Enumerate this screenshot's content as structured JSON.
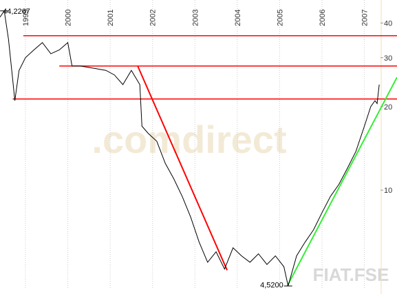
{
  "chart_data": {
    "type": "line",
    "symbol": "FIAT.FSE",
    "watermark": ".comdirect",
    "log_scale": true,
    "xlim": [
      1998.4,
      2007.38
    ],
    "xticks": [
      1999,
      2000,
      2001,
      2002,
      2003,
      2004,
      2005,
      2006,
      2007
    ],
    "ylim": [
      4.4,
      48.4
    ],
    "yticks": [
      10,
      20,
      30,
      40
    ],
    "series": [
      {
        "color": "#000000",
        "x": [
          1998.4,
          1998.5,
          1998.6,
          1998.7,
          1998.75,
          1998.85,
          1999.0,
          1999.2,
          1999.4,
          1999.6,
          1999.8,
          2000.0,
          2000.1,
          2000.3,
          2000.6,
          2000.9,
          2001.1,
          2001.3,
          2001.5,
          2001.7,
          2001.75,
          2001.9,
          2002.1,
          2002.3,
          2002.5,
          2002.7,
          2002.9,
          2003.1,
          2003.3,
          2003.5,
          2003.7,
          2003.9,
          2004.1,
          2004.3,
          2004.5,
          2004.7,
          2004.9,
          2005.1,
          2005.2,
          2005.4,
          2005.6,
          2005.8,
          2006.0,
          2006.2,
          2006.4,
          2006.6,
          2006.8,
          2007.0,
          2007.15,
          2007.25,
          2007.3,
          2007.35
        ],
        "values": [
          42,
          44.2267,
          35,
          25,
          21,
          27,
          30,
          32,
          34,
          31,
          32,
          34,
          28,
          28,
          27.5,
          27,
          26,
          24,
          27,
          24,
          17,
          16,
          15,
          12.5,
          11,
          9.5,
          8,
          6.5,
          5.5,
          6,
          5.2,
          6.2,
          5.8,
          5.5,
          5.9,
          5.4,
          5.8,
          5.3,
          4.52,
          5.8,
          6.5,
          7.2,
          8.3,
          9.5,
          10.5,
          12,
          13.8,
          17,
          20,
          21,
          20.5,
          24
        ],
        "value_labels": [
          null,
          "44,2267",
          null,
          null,
          null,
          null,
          null,
          null,
          null,
          null,
          null,
          null,
          null,
          null,
          null,
          null,
          null,
          null,
          null,
          null,
          null,
          null,
          null,
          null,
          null,
          null,
          null,
          null,
          null,
          null,
          null,
          null,
          null,
          null,
          null,
          null,
          null,
          null,
          "4,5200",
          null,
          null,
          null,
          null,
          null,
          null,
          null,
          null,
          null,
          null,
          null,
          null,
          null
        ]
      }
    ],
    "hlines": [
      {
        "color": "#ff0000",
        "value": 36,
        "x": 1998.95
      },
      {
        "color": "#ff0000",
        "value": 28,
        "x": 1999.8
      },
      {
        "color": "#ff0000",
        "value": 21.3,
        "x": 1998.7
      }
    ],
    "trend_lines": [
      {
        "color": "#ff0000",
        "x": [
          2001.65,
          2003.76
        ],
        "values": [
          28,
          5.15
        ]
      },
      {
        "color": "#33ee33",
        "x": [
          2005.18,
          2007.77
        ],
        "values": [
          4.52,
          25.5
        ]
      }
    ]
  }
}
